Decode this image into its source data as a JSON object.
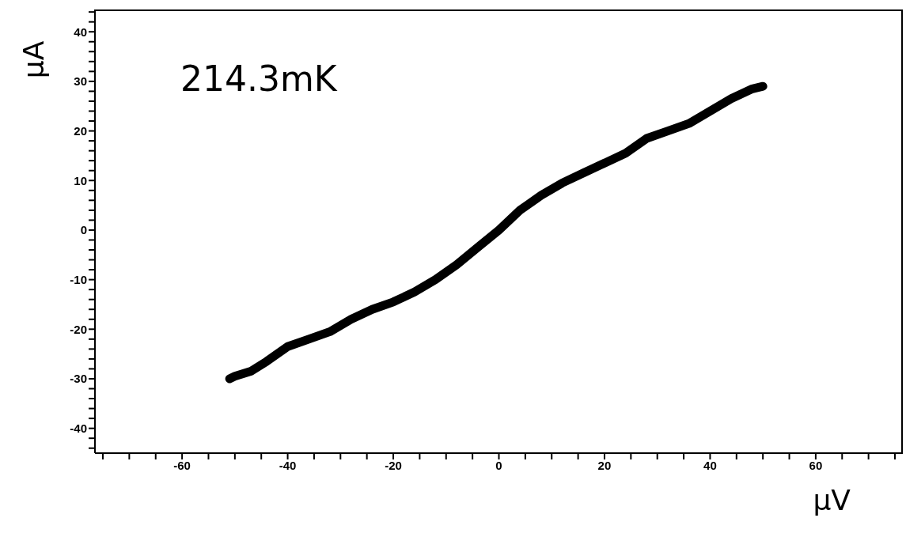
{
  "chart_data": {
    "type": "line",
    "xlabel": "μV",
    "ylabel": "μA",
    "annotations": [
      "214.3mK"
    ],
    "x": [
      -51,
      -50,
      -47,
      -44,
      -40,
      -36,
      -32,
      -28,
      -24,
      -20,
      -16,
      -12,
      -8,
      -4,
      0,
      4,
      8,
      12,
      16,
      20,
      24,
      28,
      32,
      36,
      40,
      44,
      48,
      50
    ],
    "series": [
      {
        "color": "#000000",
        "values": [
          -30,
          -29.5,
          -28.5,
          -26.5,
          -23.5,
          -22,
          -20.5,
          -18,
          -16,
          -14.5,
          -12.5,
          -10,
          -7,
          -3.5,
          0,
          4,
          7,
          9.5,
          11.5,
          13.5,
          15.5,
          18.5,
          20,
          21.5,
          24,
          26.5,
          28.5,
          29
        ]
      }
    ],
    "xlim": [
      -76.5,
      76.5
    ],
    "ylim": [
      -45,
      44.5
    ],
    "xticks": [
      {
        "value": -75,
        "label": null
      },
      {
        "value": -70,
        "label": null
      },
      {
        "value": -65,
        "label": null
      },
      -60,
      {
        "value": -55,
        "label": null
      },
      {
        "value": -50,
        "label": null
      },
      {
        "value": -45,
        "label": null
      },
      -40,
      {
        "value": -35,
        "label": null
      },
      {
        "value": -30,
        "label": null
      },
      {
        "value": -25,
        "label": null
      },
      -20,
      {
        "value": -15,
        "label": null
      },
      {
        "value": -10,
        "label": null
      },
      {
        "value": -5,
        "label": null
      },
      0,
      {
        "value": 5,
        "label": null
      },
      {
        "value": 10,
        "label": null
      },
      {
        "value": 15,
        "label": null
      },
      20,
      {
        "value": 25,
        "label": null
      },
      {
        "value": 30,
        "label": null
      },
      {
        "value": 35,
        "label": null
      },
      40,
      {
        "value": 45,
        "label": null
      },
      {
        "value": 50,
        "label": null
      },
      {
        "value": 55,
        "label": null
      },
      60,
      {
        "value": 65,
        "label": null
      },
      {
        "value": 70,
        "label": null
      },
      {
        "value": 75,
        "label": null
      }
    ],
    "yticks": [
      {
        "value": -44,
        "label": null
      },
      {
        "value": -42,
        "label": null
      },
      -40,
      {
        "value": -38,
        "label": null
      },
      {
        "value": -36,
        "label": null
      },
      {
        "value": -34,
        "label": null
      },
      {
        "value": -32,
        "label": null
      },
      -30,
      {
        "value": -28,
        "label": null
      },
      {
        "value": -26,
        "label": null
      },
      {
        "value": -24,
        "label": null
      },
      {
        "value": -22,
        "label": null
      },
      -20,
      {
        "value": -18,
        "label": null
      },
      {
        "value": -16,
        "label": null
      },
      {
        "value": -14,
        "label": null
      },
      {
        "value": -12,
        "label": null
      },
      -10,
      {
        "value": -8,
        "label": null
      },
      {
        "value": -6,
        "label": null
      },
      {
        "value": -4,
        "label": null
      },
      {
        "value": -2,
        "label": null
      },
      0,
      {
        "value": 2,
        "label": null
      },
      {
        "value": 4,
        "label": null
      },
      {
        "value": 6,
        "label": null
      },
      {
        "value": 8,
        "label": null
      },
      10,
      {
        "value": 12,
        "label": null
      },
      {
        "value": 14,
        "label": null
      },
      {
        "value": 16,
        "label": null
      },
      {
        "value": 18,
        "label": null
      },
      20,
      {
        "value": 22,
        "label": null
      },
      {
        "value": 24,
        "label": null
      },
      {
        "value": 26,
        "label": null
      },
      {
        "value": 28,
        "label": null
      },
      30,
      {
        "value": 32,
        "label": null
      },
      {
        "value": 34,
        "label": null
      },
      {
        "value": 36,
        "label": null
      },
      {
        "value": 38,
        "label": null
      },
      40,
      {
        "value": 42,
        "label": null
      },
      {
        "value": 44,
        "label": null
      }
    ],
    "marker": "none",
    "line_style": "solid",
    "grid": false,
    "legend": false
  }
}
